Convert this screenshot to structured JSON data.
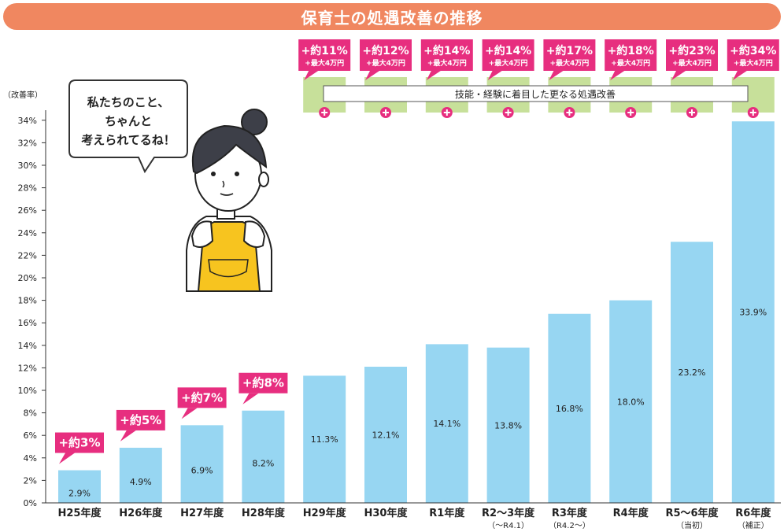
{
  "title": "保育士の処遇改善の推移",
  "speech_bubble": [
    "私たちのこと、",
    "ちゃんと",
    "考えられてるね！"
  ],
  "colors": {
    "title_bg": "#f08760",
    "bar": "#97d6f2",
    "pink": "#e72e7f",
    "green": "#c7e09a",
    "apron": "#f7c41f"
  },
  "chart_data": {
    "type": "bar",
    "ylabel": "（改善率）",
    "ylim": [
      0,
      36
    ],
    "yticks": [
      "0%",
      "2%",
      "4%",
      "6%",
      "8%",
      "10%",
      "12%",
      "14%",
      "16%",
      "18%",
      "20%",
      "22%",
      "24%",
      "26%",
      "28%",
      "30%",
      "32%",
      "34%"
    ],
    "categories": [
      "H25年度",
      "H26年度",
      "H27年度",
      "H28年度",
      "H29年度",
      "H30年度",
      "R1年度",
      "R2～3年度",
      "R3年度",
      "R4年度",
      "R5～6年度",
      "R6年度"
    ],
    "sublabels": [
      "",
      "",
      "",
      "",
      "",
      "",
      "",
      "（～R4.1）",
      "（R4.2～）",
      "",
      "（当初）",
      "（補正）"
    ],
    "values": [
      2.9,
      4.9,
      6.9,
      8.2,
      11.3,
      12.1,
      14.1,
      13.8,
      16.8,
      18.0,
      23.2,
      33.9
    ],
    "value_labels": [
      "2.9%",
      "4.9%",
      "6.9%",
      "8.2%",
      "11.3%",
      "12.1%",
      "14.1%",
      "13.8%",
      "16.8%",
      "18.0%",
      "23.2%",
      "33.9%"
    ],
    "lower_callouts": [
      "+約3%",
      "+約5%",
      "+約7%",
      "+約8%"
    ],
    "upper_callouts": [
      {
        "main": "+約11%",
        "sub": "+最大4万円"
      },
      {
        "main": "+約12%",
        "sub": "+最大4万円"
      },
      {
        "main": "+約14%",
        "sub": "+最大4万円"
      },
      {
        "main": "+約14%",
        "sub": "+最大4万円"
      },
      {
        "main": "+約17%",
        "sub": "+最大4万円"
      },
      {
        "main": "+約18%",
        "sub": "+最大4万円"
      },
      {
        "main": "+約23%",
        "sub": "+最大4万円"
      },
      {
        "main": "+約34%",
        "sub": "+最大4万円"
      }
    ],
    "skill_band_label": "技能・経験に着目した更なる処遇改善",
    "grid": false
  }
}
